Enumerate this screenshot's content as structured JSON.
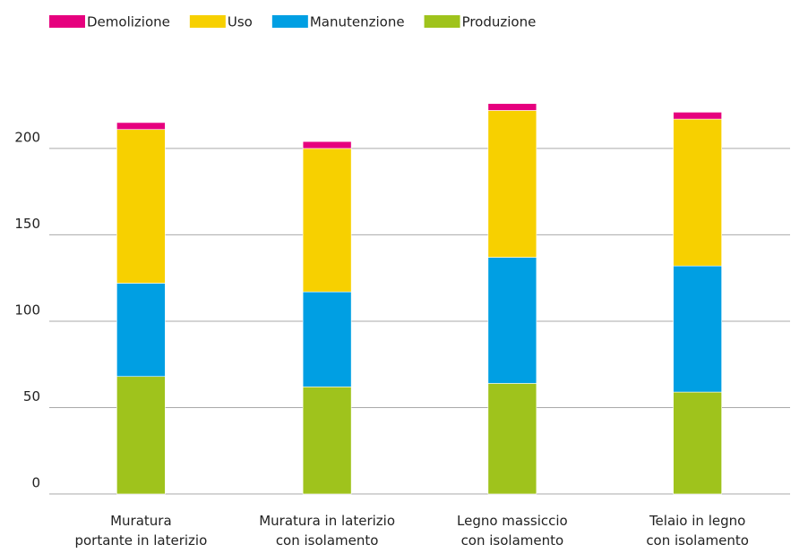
{
  "chart_data": {
    "type": "stacked_bar",
    "categories": [
      [
        "Muratura",
        "portante in laterizio"
      ],
      [
        "Muratura in laterizio",
        "con isolamento"
      ],
      [
        "Legno massiccio",
        "con isolamento"
      ],
      [
        "Telaio in legno",
        "con isolamento"
      ]
    ],
    "series": [
      {
        "name": "Produzione",
        "color": "#9fc31c",
        "values": [
          68,
          62,
          64,
          59
        ]
      },
      {
        "name": "Manutenzione",
        "color": "#009fe3",
        "values": [
          54,
          55,
          73,
          73
        ]
      },
      {
        "name": "Uso",
        "color": "#f7d000",
        "values": [
          89,
          83,
          85,
          85
        ]
      },
      {
        "name": "Demolizione",
        "color": "#e6007e",
        "values": [
          4,
          4,
          4,
          4
        ]
      }
    ],
    "legend_order": [
      3,
      2,
      1,
      0
    ],
    "ylim": [
      0,
      230
    ],
    "yticks": [
      0,
      50,
      100,
      150,
      200
    ],
    "grid": true,
    "legend": "top-left"
  }
}
